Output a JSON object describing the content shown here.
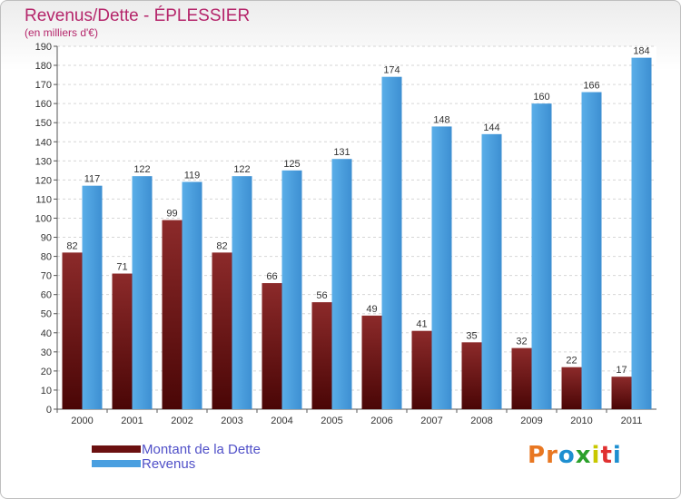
{
  "header": {
    "title": "Revenus/Dette - ÉPLESSIER",
    "subtitle": "(en milliers d'€)"
  },
  "legend": {
    "items": [
      {
        "label": "Montant de la Dette",
        "color": "#6b1010"
      },
      {
        "label": "Revenus",
        "color": "#4a9fe0"
      }
    ]
  },
  "logo": {
    "text": "Proxiti"
  },
  "chart_data": {
    "type": "bar",
    "categories": [
      "2000",
      "2001",
      "2002",
      "2003",
      "2004",
      "2005",
      "2006",
      "2007",
      "2008",
      "2009",
      "2010",
      "2011"
    ],
    "series": [
      {
        "name": "Montant de la Dette",
        "color": "#6b1010",
        "values": [
          82,
          71,
          99,
          82,
          66,
          56,
          49,
          41,
          35,
          32,
          22,
          17
        ]
      },
      {
        "name": "Revenus",
        "color": "#4a9fe0",
        "values": [
          117,
          122,
          119,
          122,
          125,
          131,
          174,
          148,
          144,
          160,
          166,
          184
        ]
      }
    ],
    "ylim": [
      0,
      190
    ],
    "ytick_step": 10,
    "grid": true,
    "data_labels": true,
    "legend_position": "bottom-left"
  }
}
